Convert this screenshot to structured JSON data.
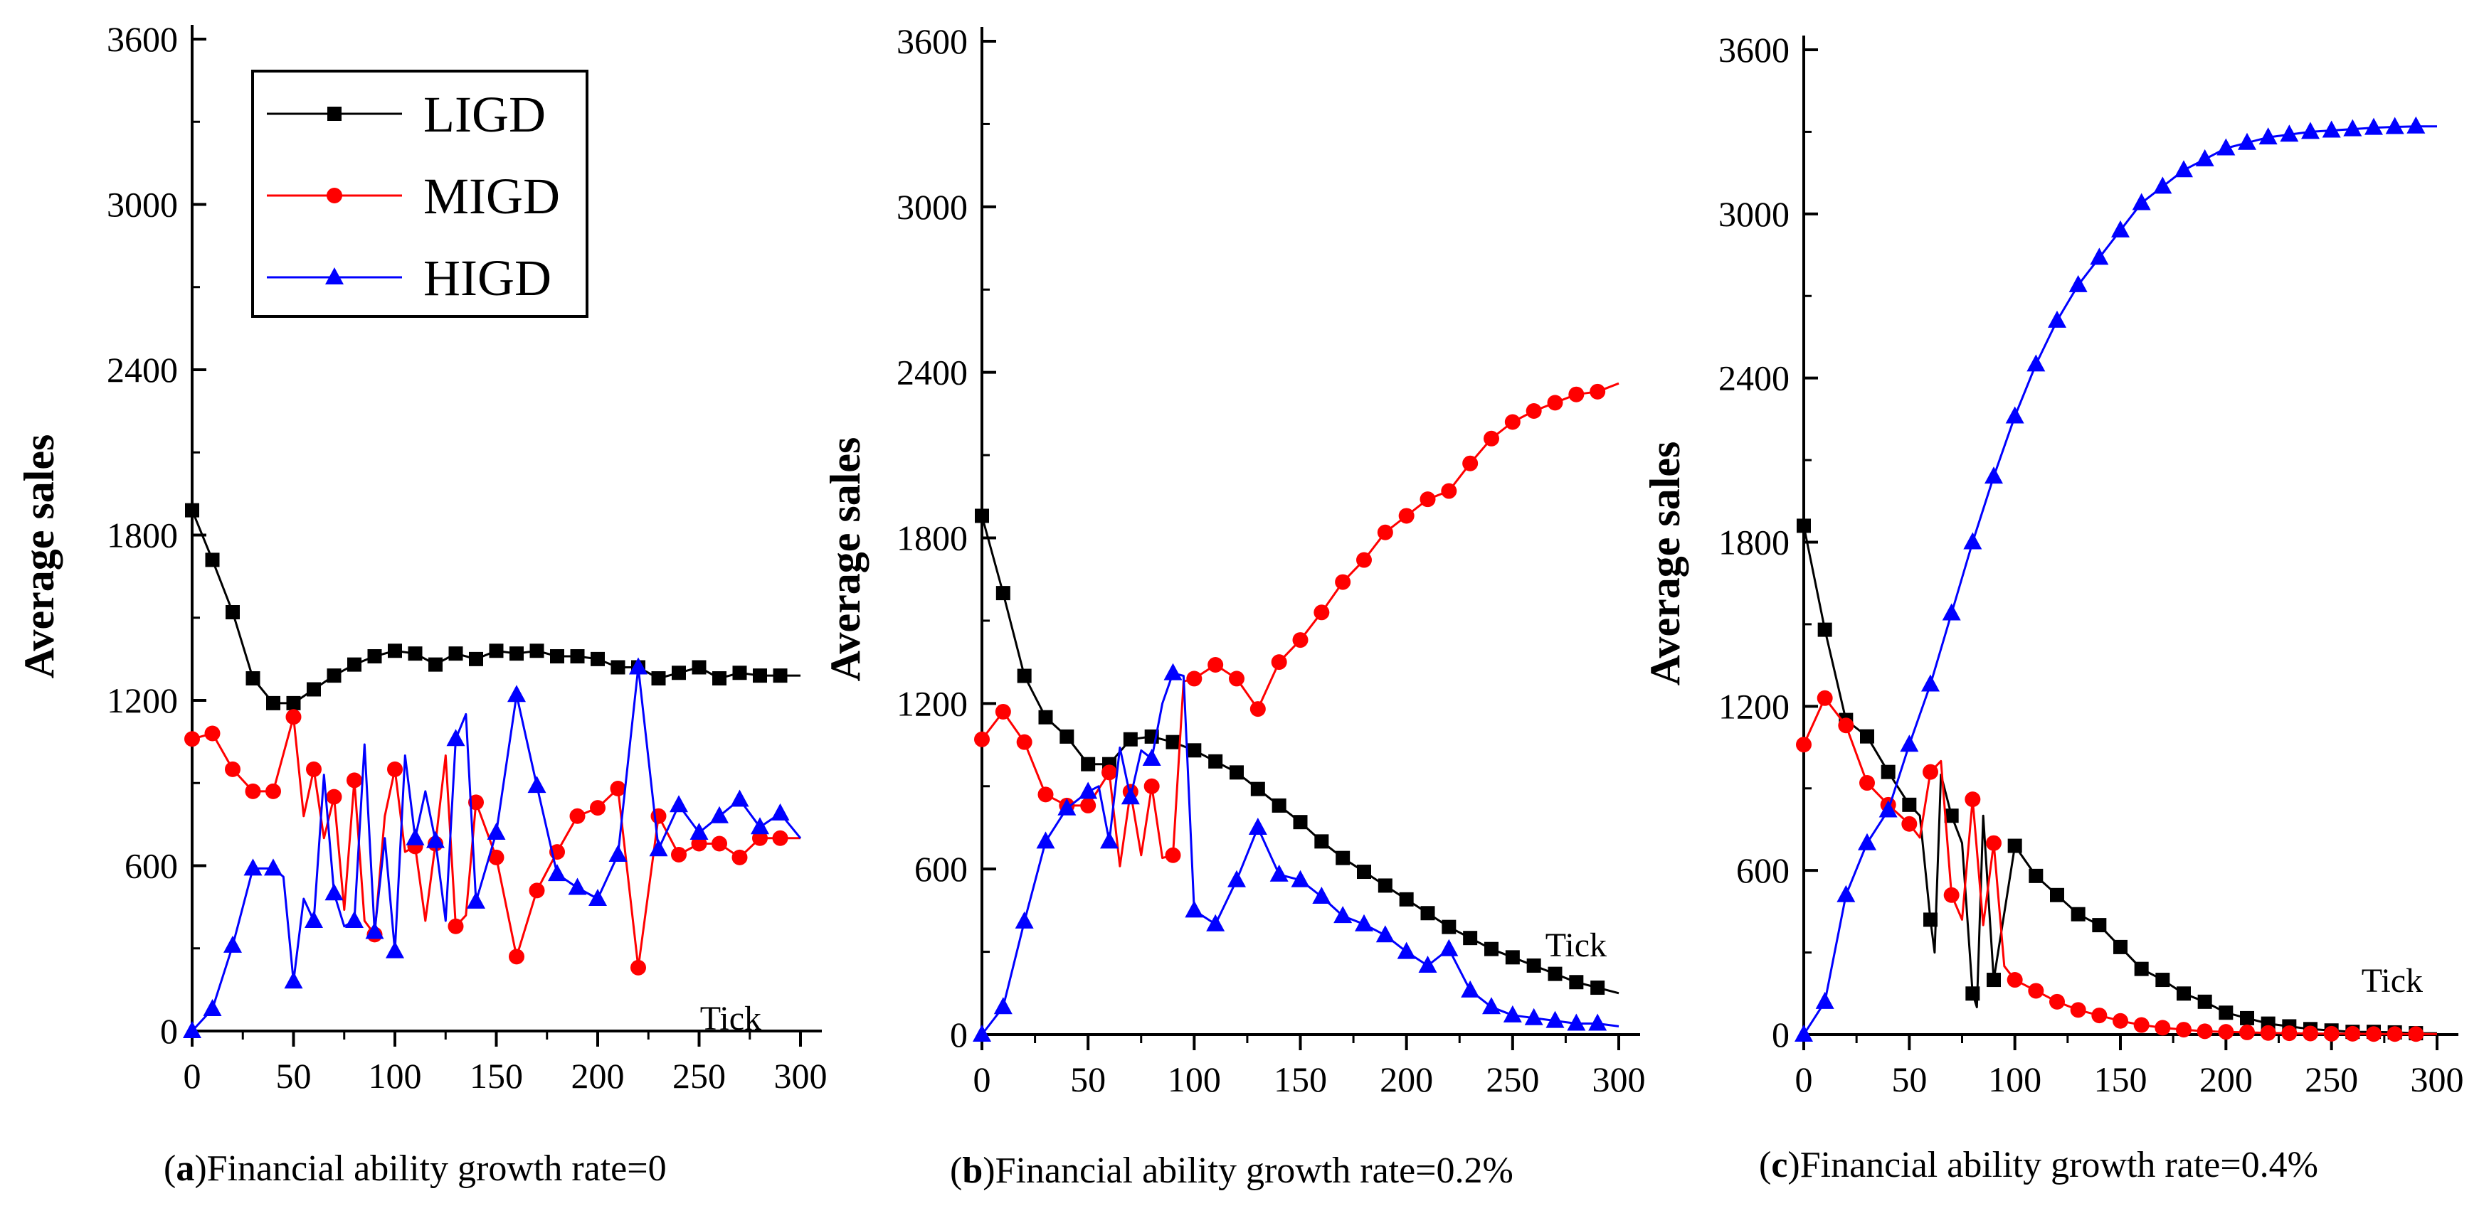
{
  "colors": {
    "LIGD": "#000000",
    "MIGD": "#ff0000",
    "HIGD": "#0000ff"
  },
  "legend": [
    {
      "name": "LIGD",
      "marker": "square"
    },
    {
      "name": "MIGD",
      "marker": "circle"
    },
    {
      "name": "HIGD",
      "marker": "triangle"
    }
  ],
  "chart_data": [
    {
      "type": "line",
      "panel": "a",
      "caption_letter": "a",
      "caption_text": ")Financial ability growth rate=0",
      "ylabel": "Average sales",
      "xlabel": "Tick",
      "xlim": [
        0,
        300
      ],
      "ylim": [
        0,
        3600
      ],
      "xticks": [
        0,
        50,
        100,
        150,
        200,
        250,
        300
      ],
      "yticks": [
        0,
        600,
        1200,
        1800,
        2400,
        3000,
        3600
      ],
      "legend_position": "top-left",
      "series": [
        {
          "name": "LIGD",
          "marker": "square",
          "x": [
            0,
            10,
            20,
            30,
            40,
            50,
            60,
            70,
            80,
            90,
            100,
            110,
            120,
            130,
            140,
            150,
            160,
            170,
            180,
            190,
            200,
            210,
            220,
            230,
            240,
            250,
            260,
            270,
            280,
            290,
            300
          ],
          "y": [
            1890,
            1710,
            1520,
            1280,
            1190,
            1190,
            1240,
            1290,
            1330,
            1360,
            1380,
            1370,
            1330,
            1370,
            1350,
            1380,
            1370,
            1380,
            1360,
            1360,
            1350,
            1320,
            1320,
            1280,
            1300,
            1320,
            1280,
            1300,
            1290,
            1290,
            1290
          ]
        },
        {
          "name": "MIGD",
          "marker": "circle",
          "x": [
            0,
            10,
            20,
            30,
            40,
            50,
            55,
            60,
            65,
            70,
            75,
            80,
            85,
            90,
            95,
            100,
            105,
            110,
            115,
            120,
            125,
            130,
            135,
            140,
            150,
            160,
            170,
            180,
            190,
            200,
            210,
            220,
            230,
            240,
            250,
            260,
            270,
            280,
            290,
            300
          ],
          "y": [
            1060,
            1080,
            950,
            870,
            870,
            1140,
            780,
            950,
            700,
            850,
            440,
            910,
            400,
            350,
            780,
            950,
            650,
            670,
            400,
            680,
            1000,
            380,
            420,
            830,
            630,
            270,
            510,
            650,
            780,
            810,
            880,
            230,
            780,
            640,
            680,
            680,
            630,
            700,
            700,
            700
          ]
        },
        {
          "name": "HIGD",
          "marker": "triangle",
          "x": [
            0,
            10,
            20,
            30,
            40,
            45,
            50,
            55,
            60,
            65,
            70,
            75,
            80,
            85,
            90,
            95,
            100,
            105,
            110,
            115,
            120,
            125,
            130,
            135,
            140,
            150,
            160,
            170,
            180,
            190,
            200,
            210,
            220,
            230,
            240,
            250,
            260,
            270,
            280,
            290,
            300
          ],
          "y": [
            0,
            80,
            310,
            590,
            590,
            560,
            180,
            480,
            400,
            930,
            500,
            380,
            400,
            1040,
            360,
            700,
            290,
            1000,
            700,
            870,
            690,
            400,
            1060,
            1150,
            470,
            720,
            1220,
            890,
            570,
            520,
            480,
            640,
            1320,
            660,
            820,
            720,
            780,
            840,
            740,
            790,
            700
          ]
        }
      ]
    },
    {
      "type": "line",
      "panel": "b",
      "caption_letter": "b",
      "caption_text": ")Financial ability growth rate=0.2%",
      "ylabel": "Average sales",
      "xlabel": "Tick",
      "xlim": [
        0,
        300
      ],
      "ylim": [
        0,
        3600
      ],
      "xticks": [
        0,
        50,
        100,
        150,
        200,
        250,
        300
      ],
      "yticks": [
        0,
        600,
        1200,
        1800,
        2400,
        3000,
        3600
      ],
      "series": [
        {
          "name": "LIGD",
          "marker": "square",
          "x": [
            0,
            10,
            20,
            30,
            40,
            50,
            60,
            70,
            80,
            90,
            100,
            110,
            120,
            130,
            140,
            150,
            160,
            170,
            180,
            190,
            200,
            210,
            220,
            230,
            240,
            250,
            260,
            270,
            280,
            290,
            300
          ],
          "y": [
            1880,
            1600,
            1300,
            1150,
            1080,
            980,
            980,
            1070,
            1080,
            1060,
            1030,
            990,
            950,
            890,
            830,
            770,
            700,
            640,
            590,
            540,
            490,
            440,
            390,
            350,
            310,
            280,
            250,
            220,
            190,
            170,
            150
          ]
        },
        {
          "name": "MIGD",
          "marker": "circle",
          "x": [
            0,
            10,
            20,
            30,
            40,
            50,
            60,
            65,
            70,
            75,
            80,
            85,
            90,
            95,
            100,
            110,
            120,
            130,
            140,
            150,
            160,
            170,
            180,
            190,
            200,
            210,
            220,
            230,
            240,
            250,
            260,
            270,
            280,
            290,
            300
          ],
          "y": [
            1070,
            1170,
            1060,
            870,
            830,
            830,
            950,
            610,
            880,
            650,
            900,
            640,
            650,
            1280,
            1290,
            1340,
            1290,
            1180,
            1350,
            1430,
            1530,
            1640,
            1720,
            1820,
            1880,
            1940,
            1970,
            2070,
            2160,
            2220,
            2260,
            2290,
            2320,
            2330,
            2360
          ]
        },
        {
          "name": "HIGD",
          "marker": "triangle",
          "x": [
            0,
            10,
            20,
            30,
            40,
            50,
            55,
            60,
            65,
            70,
            75,
            80,
            85,
            90,
            95,
            100,
            110,
            120,
            130,
            140,
            150,
            160,
            170,
            180,
            190,
            200,
            210,
            220,
            230,
            240,
            250,
            260,
            270,
            280,
            290,
            300
          ],
          "y": [
            0,
            100,
            410,
            700,
            820,
            880,
            900,
            700,
            1040,
            860,
            1030,
            1000,
            1200,
            1310,
            1300,
            450,
            400,
            560,
            750,
            580,
            560,
            500,
            430,
            400,
            360,
            300,
            250,
            310,
            160,
            100,
            70,
            60,
            50,
            40,
            40,
            30
          ]
        }
      ]
    },
    {
      "type": "line",
      "panel": "c",
      "caption_letter": "c",
      "caption_text": ")Financial ability growth rate=0.4%",
      "ylabel": "Average sales",
      "xlabel": "Tick",
      "xlim": [
        0,
        300
      ],
      "ylim": [
        0,
        3600
      ],
      "xticks": [
        0,
        50,
        100,
        150,
        200,
        250,
        300
      ],
      "yticks": [
        0,
        600,
        1200,
        1800,
        2400,
        3000,
        3600
      ],
      "series": [
        {
          "name": "LIGD",
          "marker": "square",
          "x": [
            0,
            10,
            20,
            30,
            40,
            50,
            55,
            60,
            62,
            65,
            70,
            75,
            80,
            82,
            85,
            90,
            100,
            110,
            120,
            130,
            140,
            150,
            160,
            170,
            180,
            190,
            200,
            210,
            220,
            230,
            240,
            250,
            260,
            270,
            280,
            290,
            300
          ],
          "y": [
            1860,
            1480,
            1150,
            1090,
            960,
            840,
            800,
            420,
            300,
            950,
            800,
            700,
            150,
            100,
            800,
            200,
            690,
            580,
            510,
            440,
            400,
            320,
            240,
            200,
            150,
            120,
            80,
            60,
            40,
            30,
            20,
            15,
            10,
            10,
            8,
            5,
            5
          ]
        },
        {
          "name": "MIGD",
          "marker": "circle",
          "x": [
            0,
            10,
            20,
            30,
            40,
            50,
            55,
            60,
            65,
            70,
            75,
            80,
            85,
            90,
            95,
            100,
            110,
            120,
            130,
            140,
            150,
            160,
            170,
            180,
            190,
            200,
            210,
            220,
            230,
            240,
            250,
            260,
            270,
            280,
            290,
            300
          ],
          "y": [
            1060,
            1230,
            1130,
            920,
            840,
            770,
            720,
            960,
            1000,
            510,
            420,
            860,
            400,
            700,
            250,
            200,
            160,
            120,
            90,
            70,
            50,
            35,
            25,
            18,
            12,
            10,
            8,
            6,
            5,
            4,
            3,
            3,
            2,
            2,
            2,
            2
          ]
        },
        {
          "name": "HIGD",
          "marker": "triangle",
          "x": [
            0,
            10,
            20,
            30,
            40,
            50,
            60,
            70,
            80,
            90,
            100,
            110,
            120,
            130,
            140,
            150,
            160,
            170,
            180,
            190,
            200,
            210,
            220,
            230,
            240,
            250,
            260,
            270,
            280,
            290,
            300
          ],
          "y": [
            0,
            120,
            510,
            700,
            820,
            1060,
            1280,
            1540,
            1800,
            2040,
            2260,
            2450,
            2610,
            2740,
            2840,
            2940,
            3040,
            3100,
            3160,
            3200,
            3240,
            3260,
            3280,
            3290,
            3300,
            3305,
            3310,
            3315,
            3318,
            3320,
            3320
          ]
        }
      ]
    }
  ]
}
